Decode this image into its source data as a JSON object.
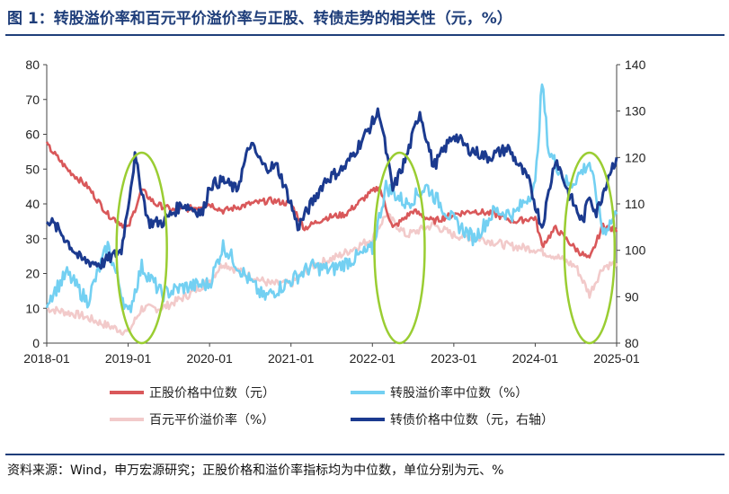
{
  "title": "图 1：转股溢价率和百元平价溢价率与正股、转债走势的相关性（元，%）",
  "source": "资料来源：Wind，申万宏源研究；正股价格和溢价率指标均为中位数，单位分别为元、%",
  "colors": {
    "stock_price": "#d9585a",
    "conv_premium": "#73d0f2",
    "parity_premium": "#f2caca",
    "bond_price": "#1b3a8f",
    "ellipse": "#9acd32",
    "title": "#1f3e7a"
  },
  "chart_data": {
    "type": "line",
    "x_ticks": [
      "2018-01",
      "2019-01",
      "2020-01",
      "2021-01",
      "2022-01",
      "2023-01",
      "2024-01",
      "2025-01"
    ],
    "y_left": {
      "ticks": [
        0,
        10,
        20,
        30,
        40,
        50,
        60,
        70,
        80
      ],
      "ylim": [
        0,
        80
      ]
    },
    "y_right": {
      "ticks": [
        80,
        90,
        100,
        110,
        120,
        130,
        140
      ],
      "ylim": [
        80,
        140
      ]
    },
    "series": [
      {
        "name": "正股价格中位数（元）",
        "axis": "left",
        "color": "#d9585a",
        "points": [
          [
            "2018-01",
            57
          ],
          [
            "2018-04",
            50
          ],
          [
            "2018-07",
            45
          ],
          [
            "2018-10",
            37
          ],
          [
            "2019-01",
            33
          ],
          [
            "2019-03",
            44
          ],
          [
            "2019-05",
            40
          ],
          [
            "2019-08",
            38
          ],
          [
            "2019-11",
            39
          ],
          [
            "2020-01",
            40
          ],
          [
            "2020-03",
            38
          ],
          [
            "2020-07",
            40
          ],
          [
            "2020-10",
            41
          ],
          [
            "2021-01",
            40
          ],
          [
            "2021-03",
            33
          ],
          [
            "2021-06",
            36
          ],
          [
            "2021-09",
            37
          ],
          [
            "2021-12",
            42
          ],
          [
            "2022-02",
            45
          ],
          [
            "2022-04",
            33
          ],
          [
            "2022-07",
            38
          ],
          [
            "2022-10",
            35
          ],
          [
            "2023-01",
            37
          ],
          [
            "2023-04",
            38
          ],
          [
            "2023-07",
            37
          ],
          [
            "2023-10",
            35
          ],
          [
            "2024-01",
            36
          ],
          [
            "2024-02",
            28
          ],
          [
            "2024-04",
            33
          ],
          [
            "2024-07",
            27
          ],
          [
            "2024-09",
            24
          ],
          [
            "2024-11",
            34
          ],
          [
            "2025-01",
            32
          ]
        ]
      },
      {
        "name": "转股溢价率中位数（%）",
        "axis": "left",
        "color": "#73d0f2",
        "points": [
          [
            "2018-01",
            12
          ],
          [
            "2018-04",
            20
          ],
          [
            "2018-07",
            12
          ],
          [
            "2018-10",
            28
          ],
          [
            "2019-01",
            8
          ],
          [
            "2019-03",
            22
          ],
          [
            "2019-06",
            14
          ],
          [
            "2019-09",
            16
          ],
          [
            "2020-01",
            17
          ],
          [
            "2020-03",
            28
          ],
          [
            "2020-06",
            20
          ],
          [
            "2020-09",
            13
          ],
          [
            "2021-01",
            18
          ],
          [
            "2021-04",
            22
          ],
          [
            "2021-07",
            21
          ],
          [
            "2021-10",
            24
          ],
          [
            "2022-01",
            27
          ],
          [
            "2022-03",
            45
          ],
          [
            "2022-06",
            40
          ],
          [
            "2022-09",
            45
          ],
          [
            "2023-01",
            35
          ],
          [
            "2023-04",
            30
          ],
          [
            "2023-07",
            38
          ],
          [
            "2023-10",
            37
          ],
          [
            "2024-01",
            45
          ],
          [
            "2024-02",
            75
          ],
          [
            "2024-03",
            55
          ],
          [
            "2024-06",
            45
          ],
          [
            "2024-09",
            52
          ],
          [
            "2024-11",
            32
          ],
          [
            "2025-01",
            37
          ]
        ]
      },
      {
        "name": "百元平价溢价率（%）",
        "axis": "left",
        "color": "#f2caca",
        "points": [
          [
            "2018-01",
            10
          ],
          [
            "2018-06",
            8
          ],
          [
            "2018-10",
            5
          ],
          [
            "2019-01",
            3
          ],
          [
            "2019-03",
            10
          ],
          [
            "2019-06",
            10
          ],
          [
            "2019-10",
            14
          ],
          [
            "2020-01",
            18
          ],
          [
            "2020-03",
            23
          ],
          [
            "2020-06",
            20
          ],
          [
            "2020-10",
            17
          ],
          [
            "2021-01",
            17
          ],
          [
            "2021-04",
            22
          ],
          [
            "2021-08",
            25
          ],
          [
            "2022-01",
            30
          ],
          [
            "2022-03",
            37
          ],
          [
            "2022-06",
            31
          ],
          [
            "2022-10",
            34
          ],
          [
            "2023-01",
            31
          ],
          [
            "2023-05",
            30
          ],
          [
            "2023-09",
            28
          ],
          [
            "2024-01",
            27
          ],
          [
            "2024-04",
            25
          ],
          [
            "2024-07",
            22
          ],
          [
            "2024-09",
            14
          ],
          [
            "2024-11",
            22
          ],
          [
            "2025-01",
            23
          ]
        ]
      },
      {
        "name": "转债价格中位数（元，右轴）",
        "axis": "right",
        "color": "#1b3a8f",
        "points": [
          [
            "2018-01",
            107
          ],
          [
            "2018-03",
            104
          ],
          [
            "2018-06",
            98
          ],
          [
            "2018-09",
            97
          ],
          [
            "2018-12",
            100
          ],
          [
            "2019-02",
            120
          ],
          [
            "2019-04",
            106
          ],
          [
            "2019-06",
            106
          ],
          [
            "2019-09",
            110
          ],
          [
            "2019-12",
            108
          ],
          [
            "2020-01",
            114
          ],
          [
            "2020-03",
            115
          ],
          [
            "2020-05",
            113
          ],
          [
            "2020-07",
            123
          ],
          [
            "2020-09",
            118
          ],
          [
            "2020-11",
            118
          ],
          [
            "2021-01",
            110
          ],
          [
            "2021-02",
            105
          ],
          [
            "2021-04",
            110
          ],
          [
            "2021-06",
            115
          ],
          [
            "2021-09",
            118
          ],
          [
            "2021-12",
            125
          ],
          [
            "2022-02",
            130
          ],
          [
            "2022-04",
            113
          ],
          [
            "2022-06",
            120
          ],
          [
            "2022-08",
            130
          ],
          [
            "2022-10",
            118
          ],
          [
            "2023-01",
            125
          ],
          [
            "2023-03",
            122
          ],
          [
            "2023-06",
            120
          ],
          [
            "2023-09",
            122
          ],
          [
            "2023-12",
            115
          ],
          [
            "2024-02",
            105
          ],
          [
            "2024-04",
            120
          ],
          [
            "2024-06",
            112
          ],
          [
            "2024-08",
            106
          ],
          [
            "2024-09",
            112
          ],
          [
            "2024-10",
            108
          ],
          [
            "2024-12",
            117
          ],
          [
            "2025-01",
            120
          ]
        ]
      }
    ],
    "legend": [
      {
        "label": "正股价格中位数（元）",
        "color": "#d9585a"
      },
      {
        "label": "转股溢价率中位数（%）",
        "color": "#73d0f2"
      },
      {
        "label": "百元平价溢价率（%）",
        "color": "#f2caca"
      },
      {
        "label": "转债价格中位数（元，右轴）",
        "color": "#1b3a8f"
      }
    ],
    "highlight_periods": [
      "2019-03",
      "2022-05",
      "2024-09"
    ],
    "grid": false,
    "legend_placement": "bottom"
  }
}
